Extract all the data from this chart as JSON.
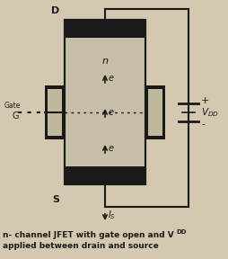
{
  "bg_color": "#d4c9b0",
  "line_color": "#1a1a1a",
  "black": "#1a1a1a",
  "chan_fill": "#c8bfa8",
  "gate_fill": "#c0b89a",
  "label_D": "D",
  "label_S": "S",
  "label_Gate": "Gate",
  "label_G": "G",
  "label_n": "n",
  "label_e": "e",
  "label_plus": "+",
  "label_minus": "-",
  "caption1": "n- channel JFET with gate open and V",
  "caption1_sub": "DD",
  "caption2": "applied between drain and source"
}
